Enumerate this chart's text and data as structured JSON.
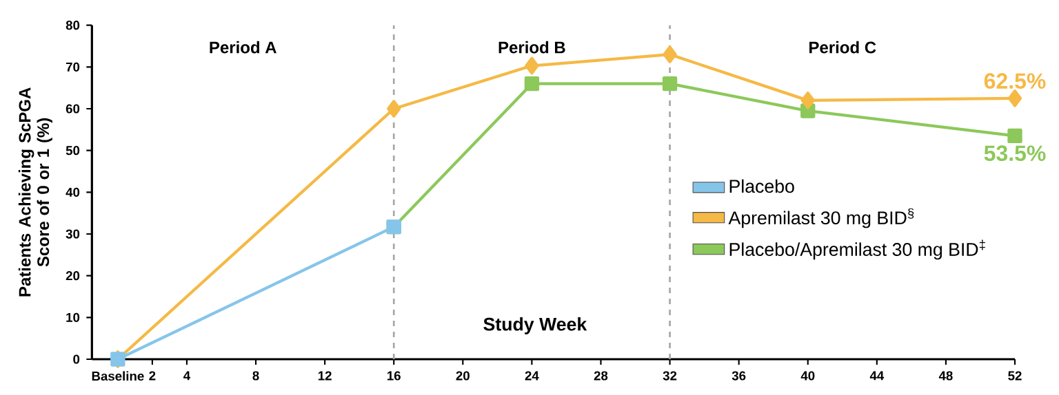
{
  "chart_data": {
    "type": "line",
    "ylabel": "Patients Achieving ScPGA Score of 0 or 1 (%)",
    "xlabel": "Study Week",
    "xlim": [
      -1.5,
      52
    ],
    "ylim": [
      0,
      80
    ],
    "xticks": [
      {
        "value": 0,
        "label": "Baseline"
      },
      2,
      4,
      8,
      12,
      16,
      20,
      24,
      28,
      32,
      36,
      40,
      44,
      48,
      52
    ],
    "yticks": [
      0,
      10,
      20,
      30,
      40,
      50,
      60,
      70,
      80
    ],
    "grid": false,
    "legend": "right",
    "line_style": "solid",
    "series": [
      {
        "name": "Placebo",
        "color": "#86c5ea",
        "marker": "square",
        "x": [
          0,
          16
        ],
        "values": [
          0,
          31.7
        ]
      },
      {
        "name": "Apremilast 30 mg BID$^{§}$",
        "color": "#f5b945",
        "marker": "diamond",
        "x": [
          0,
          16,
          24,
          32,
          40,
          52
        ],
        "values": [
          0,
          60,
          70.3,
          73,
          62,
          62.5
        ],
        "value_labels": [
          null,
          null,
          null,
          null,
          null,
          "62.5%"
        ]
      },
      {
        "name": "Placebo/Apremilast 30 mg BID$^{‡}$",
        "color": "#8cc85a",
        "marker": "square",
        "x": [
          16,
          24,
          32,
          40,
          52
        ],
        "values": [
          31.7,
          66,
          66,
          59.5,
          53.5
        ],
        "value_labels": [
          null,
          null,
          null,
          null,
          "53.5%"
        ]
      }
    ],
    "ref_lines": [
      {
        "axis": "x",
        "value": 16,
        "color": "#a6a6a6",
        "line_style": "dashed"
      },
      {
        "axis": "x",
        "value": 32,
        "color": "#a6a6a6",
        "line_style": "dashed"
      }
    ],
    "annotations": [
      "Period A",
      "Period B",
      "Period C"
    ]
  }
}
